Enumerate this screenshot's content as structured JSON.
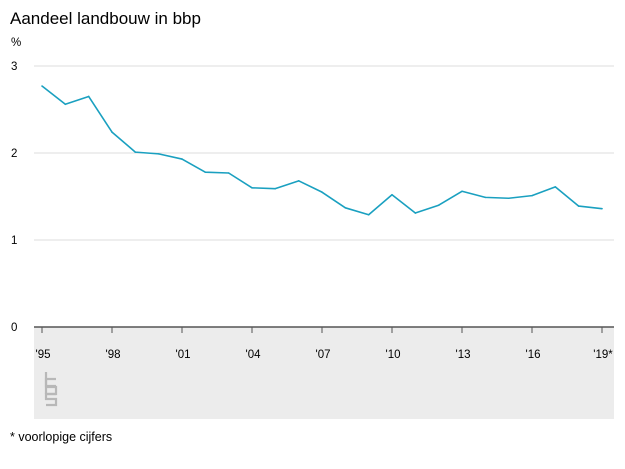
{
  "title": "Aandeel landbouw in bbp",
  "footnote": "* voorlopige cijfers",
  "logo_text": "cbs",
  "colors": {
    "line": "#1aa0c0",
    "grid": "#dddddd",
    "axis": "#555555",
    "footer_bg": "#ececec"
  },
  "chart_data": {
    "type": "line",
    "ylabel": "%",
    "xlabel": "",
    "ylim": [
      0,
      3
    ],
    "yticks": [
      "0",
      "1",
      "2",
      "3"
    ],
    "xtick_labels": [
      "'95",
      "'98",
      "'01",
      "'04",
      "'07",
      "'10",
      "'13",
      "'16",
      "'19*"
    ],
    "xtick_years": [
      1995,
      1998,
      2001,
      2004,
      2007,
      2010,
      2013,
      2016,
      2019
    ],
    "grid": true,
    "x": [
      1995,
      1996,
      1997,
      1998,
      1999,
      2000,
      2001,
      2002,
      2003,
      2004,
      2005,
      2006,
      2007,
      2008,
      2009,
      2010,
      2011,
      2012,
      2013,
      2014,
      2015,
      2016,
      2017,
      2018,
      2019
    ],
    "series": [
      {
        "values": [
          2.77,
          2.56,
          2.65,
          2.24,
          2.01,
          1.99,
          1.93,
          1.78,
          1.77,
          1.6,
          1.59,
          1.68,
          1.55,
          1.37,
          1.29,
          1.52,
          1.31,
          1.4,
          1.56,
          1.49,
          1.48,
          1.51,
          1.61,
          1.39,
          1.36
        ]
      }
    ]
  }
}
